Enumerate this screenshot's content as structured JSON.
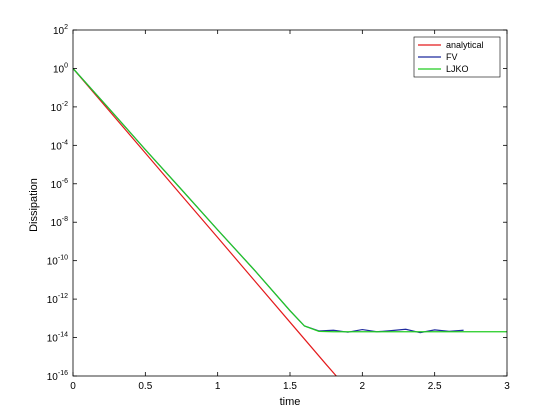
{
  "chart_data": {
    "type": "line",
    "xlabel": "time",
    "ylabel": "Dissipation",
    "xlim": [
      0,
      3
    ],
    "ylim": [
      1e-16,
      100
    ],
    "yscale": "log",
    "grid": false,
    "legend_position": "top-right",
    "x_ticks": [
      0,
      0.5,
      1,
      1.5,
      2,
      2.5,
      3
    ],
    "x_tick_labels": [
      "0",
      "0.5",
      "1",
      "1.5",
      "2",
      "2.5",
      "3"
    ],
    "y_tick_exponents": [
      2,
      0,
      -2,
      -4,
      -6,
      -8,
      -10,
      -12,
      -14,
      -16
    ],
    "series": [
      {
        "name": "analytical",
        "color": "#e41a1c",
        "x": [
          0,
          0.25,
          0.5,
          0.75,
          1.0,
          1.25,
          1.5,
          1.75,
          1.82
        ],
        "y": [
          1.0,
          0.0063,
          4e-05,
          2.5e-07,
          1.6e-09,
          1e-11,
          6.3e-14,
          4e-16,
          1e-16
        ]
      },
      {
        "name": "FV",
        "color": "#1f2a9e",
        "x": [
          0,
          0.25,
          0.5,
          0.75,
          1.0,
          1.25,
          1.5,
          1.6,
          1.7,
          1.8,
          1.9,
          2.0,
          2.1,
          2.2,
          2.3,
          2.4,
          2.5,
          2.6,
          2.7
        ],
        "y": [
          1.0,
          0.008,
          6e-05,
          5e-07,
          4e-09,
          3.5e-11,
          2.5e-13,
          4e-14,
          2.2e-14,
          2.4e-14,
          1.9e-14,
          2.6e-14,
          2e-14,
          2.3e-14,
          2.7e-14,
          1.8e-14,
          2.5e-14,
          2.1e-14,
          2.4e-14
        ]
      },
      {
        "name": "LJKO",
        "color": "#22cc22",
        "x": [
          0,
          0.25,
          0.5,
          0.75,
          1.0,
          1.25,
          1.5,
          1.6,
          1.7,
          1.8,
          2.0,
          2.2,
          2.4,
          2.6,
          2.8,
          3.0
        ],
        "y": [
          1.0,
          0.008,
          6e-05,
          5e-07,
          4e-09,
          3.5e-11,
          2.5e-13,
          4e-14,
          2.1e-14,
          2e-14,
          2e-14,
          2e-14,
          2e-14,
          2e-14,
          2e-14,
          2e-14
        ]
      }
    ]
  }
}
